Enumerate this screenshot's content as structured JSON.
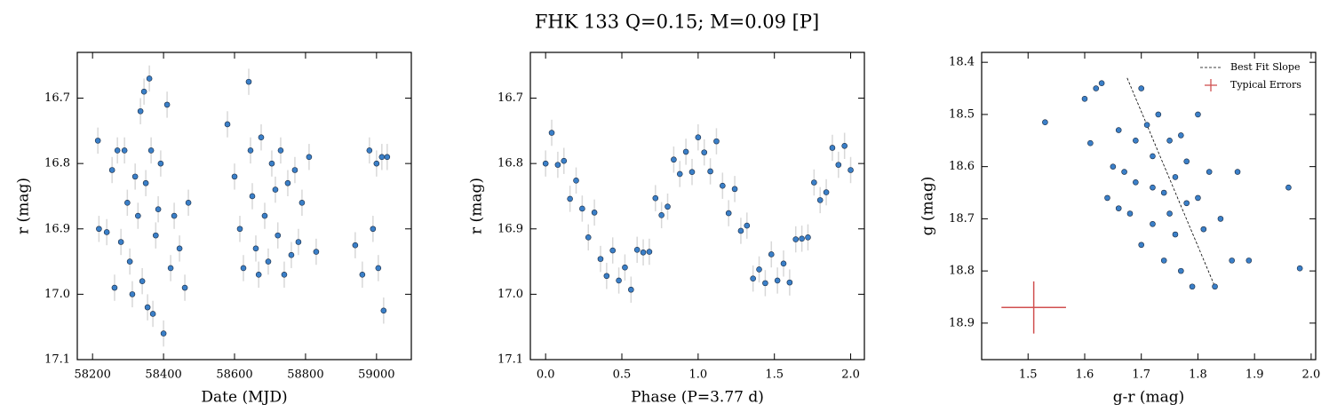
{
  "title": "FHK 133  Q=0.15; M=0.09 [P]",
  "chart_data": [
    {
      "type": "scatter",
      "x_label": "Date (MJD)",
      "y_label": "r (mag)",
      "color": "#3a7fc8",
      "yerr": 0.02,
      "xlim": [
        58157,
        59098
      ],
      "ylim": [
        17.1,
        16.63
      ],
      "xticks": [
        58200,
        58400,
        58600,
        58800,
        59000
      ],
      "yticks": [
        16.7,
        16.8,
        16.9,
        {
          "value": 17,
          "label": "17.0"
        },
        17.1
      ],
      "x": [
        58215,
        58218,
        58240,
        58255,
        58262,
        58270,
        58280,
        58290,
        58298,
        58305,
        58312,
        58320,
        58328,
        58335,
        58340,
        58345,
        58350,
        58355,
        58360,
        58365,
        58370,
        58378,
        58385,
        58392,
        58400,
        58410,
        58420,
        58430,
        58445,
        58460,
        58470,
        58580,
        58600,
        58615,
        58625,
        58640,
        58645,
        58650,
        58660,
        58668,
        58675,
        58685,
        58695,
        58705,
        58715,
        58722,
        58730,
        58740,
        58750,
        58760,
        58770,
        58780,
        58790,
        58810,
        58830,
        58940,
        58960,
        58980,
        58990,
        59000,
        59005,
        59015,
        59020,
        59030
      ],
      "values": [
        16.765,
        16.9,
        16.905,
        16.81,
        16.99,
        16.78,
        16.92,
        16.78,
        16.86,
        16.95,
        17.0,
        16.82,
        16.88,
        16.72,
        16.98,
        16.69,
        16.83,
        17.02,
        16.67,
        16.78,
        17.03,
        16.91,
        16.87,
        16.8,
        17.06,
        16.71,
        16.96,
        16.88,
        16.93,
        16.99,
        16.86,
        16.74,
        16.82,
        16.9,
        16.96,
        16.675,
        16.78,
        16.85,
        16.93,
        16.97,
        16.76,
        16.88,
        16.95,
        16.8,
        16.84,
        16.91,
        16.78,
        16.97,
        16.83,
        16.94,
        16.81,
        16.92,
        16.86,
        16.79,
        16.935,
        16.925,
        16.97,
        16.78,
        16.9,
        16.8,
        16.96,
        16.79,
        17.025,
        16.79
      ]
    },
    {
      "type": "scatter",
      "x_label": "Phase (P=3.77 d)",
      "y_label": "r (mag)",
      "color": "#3a7fc8",
      "yerr": 0.02,
      "xlim": [
        -0.1,
        2.09
      ],
      "ylim": [
        17.1,
        16.63
      ],
      "xticks": [
        {
          "value": 0,
          "label": "0.0"
        },
        0.5,
        {
          "value": 1,
          "label": "1.0"
        },
        1.5,
        {
          "value": 2,
          "label": "2.0"
        }
      ],
      "yticks": [
        16.7,
        16.8,
        16.9,
        {
          "value": 17,
          "label": "17.0"
        },
        17.1
      ],
      "x": [
        0,
        0.04,
        0.08,
        0.12,
        0.16,
        0.2,
        0.24,
        0.28,
        0.32,
        0.36,
        0.4,
        0.44,
        0.48,
        0.52,
        0.56,
        0.6,
        0.64,
        0.68,
        0.72,
        0.76,
        0.8,
        0.84,
        0.88,
        0.92,
        0.96,
        1,
        1.04,
        1.08,
        1.12,
        1.16,
        1.2,
        1.24,
        1.28,
        1.32,
        1.36,
        1.4,
        1.44,
        1.48,
        1.52,
        1.56,
        1.6,
        1.64,
        1.68,
        1.72,
        1.76,
        1.8,
        1.84,
        1.88,
        1.92,
        1.96,
        2
      ],
      "values": [
        16.8,
        16.753,
        16.802,
        16.796,
        16.854,
        16.826,
        16.869,
        16.913,
        16.875,
        16.946,
        16.972,
        16.933,
        16.979,
        16.959,
        16.993,
        16.932,
        16.936,
        16.935,
        16.853,
        16.879,
        16.866,
        16.794,
        16.816,
        16.782,
        16.813,
        16.76,
        16.783,
        16.812,
        16.766,
        16.834,
        16.876,
        16.839,
        16.903,
        16.895,
        16.976,
        16.962,
        16.983,
        16.939,
        16.979,
        16.953,
        16.982,
        16.916,
        16.915,
        16.913,
        16.829,
        16.856,
        16.844,
        16.776,
        16.802,
        16.773,
        16.81
      ]
    },
    {
      "type": "scatter",
      "x_label": "g-r (mag)",
      "y_label": "g (mag)",
      "color": "#3a7fc8",
      "xlim": [
        1.418,
        2.008
      ],
      "ylim": [
        18.97,
        18.381
      ],
      "xticks": [
        1.5,
        1.6,
        1.7,
        1.8,
        1.9,
        {
          "value": 2,
          "label": "2.0"
        }
      ],
      "yticks": [
        18.4,
        18.5,
        18.6,
        18.7,
        18.8,
        18.9
      ],
      "legend": "upper right",
      "x": [
        1.53,
        1.6,
        1.61,
        1.62,
        1.63,
        1.64,
        1.65,
        1.66,
        1.67,
        1.68,
        1.69,
        1.7,
        1.7,
        1.71,
        1.72,
        1.72,
        1.73,
        1.74,
        1.74,
        1.75,
        1.75,
        1.76,
        1.76,
        1.77,
        1.77,
        1.78,
        1.78,
        1.79,
        1.8,
        1.8,
        1.81,
        1.82,
        1.83,
        1.84,
        1.86,
        1.87,
        1.89,
        1.96,
        1.98,
        1.66,
        1.72,
        1.69
      ],
      "values": [
        18.515,
        18.47,
        18.555,
        18.45,
        18.44,
        18.66,
        18.6,
        18.53,
        18.61,
        18.69,
        18.63,
        18.45,
        18.75,
        18.52,
        18.58,
        18.71,
        18.5,
        18.65,
        18.78,
        18.55,
        18.69,
        18.62,
        18.73,
        18.54,
        18.8,
        18.67,
        18.59,
        18.83,
        18.5,
        18.66,
        18.72,
        18.61,
        18.83,
        18.7,
        18.78,
        18.61,
        18.78,
        18.64,
        18.795,
        18.68,
        18.64,
        18.55
      ],
      "fit": {
        "name": "Best Fit Slope",
        "color": "#000000",
        "x": [
          1.675,
          1.83
        ],
        "y": [
          18.43,
          18.83
        ]
      },
      "error_bar": {
        "name": "Typical Errors",
        "color": "#d05050",
        "x": 1.51,
        "y": 18.87,
        "xerr": 0.057,
        "yerr": 0.05
      }
    }
  ]
}
